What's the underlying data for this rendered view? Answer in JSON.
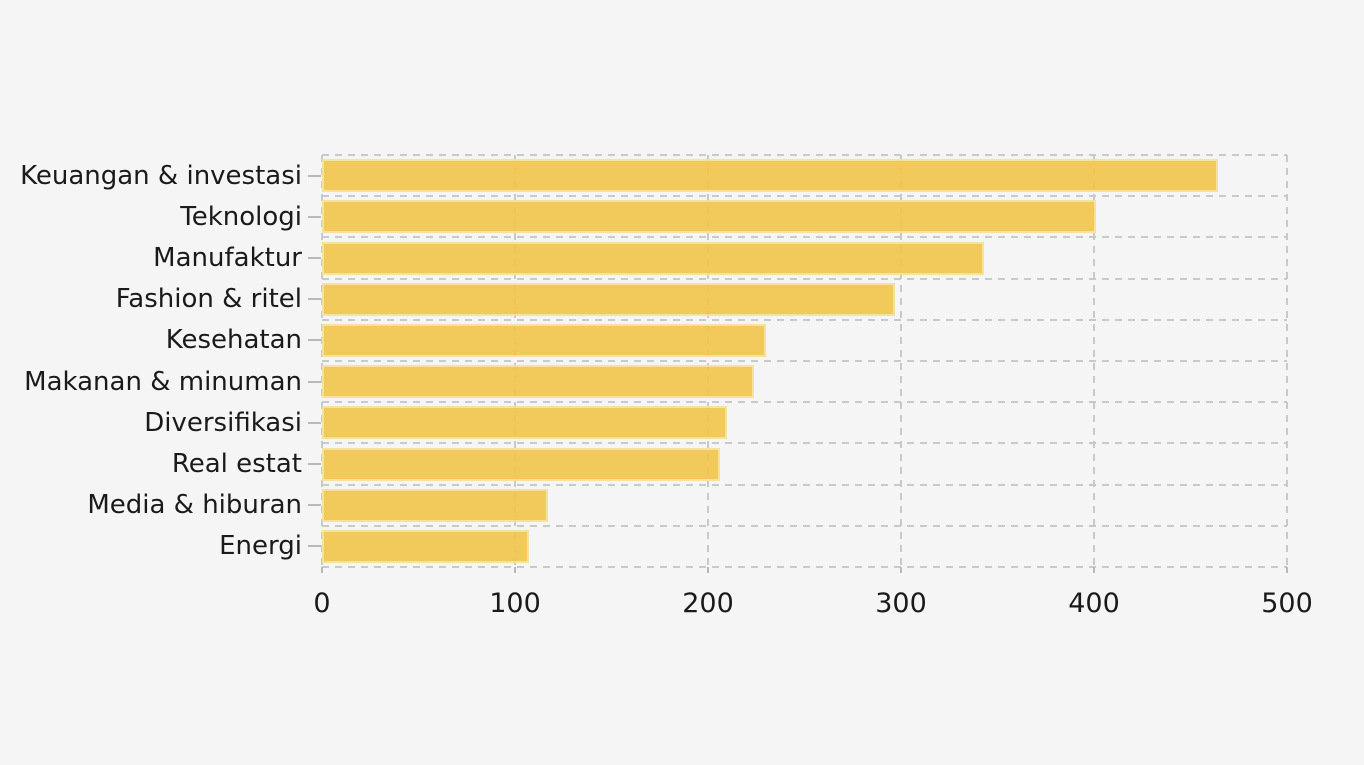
{
  "chart_data": {
    "type": "bar",
    "orientation": "horizontal",
    "title": "",
    "xlabel": "",
    "ylabel": "",
    "categories": [
      "Keuangan & investasi",
      "Teknologi",
      "Manufaktur",
      "Fashion & ritel",
      "Kesehatan",
      "Makanan & minuman",
      "Diversifikasi",
      "Real estat",
      "Media & hiburan",
      "Energi"
    ],
    "values": [
      464,
      401,
      343,
      297,
      230,
      224,
      210,
      206,
      117,
      107
    ],
    "xlim": [
      0,
      500
    ],
    "x_ticks": [
      "0",
      "100",
      "200",
      "300",
      "400",
      "500"
    ],
    "x_tick_values": [
      0,
      100,
      200,
      300,
      400,
      500
    ],
    "grid": "dashed",
    "legend": "none",
    "colors": {
      "bar": "#f0c64f",
      "background": "#f5f5f5",
      "gridline": "#c9c9c9",
      "tickmark": "#b9b9b9",
      "text": "#1a1a1a"
    }
  }
}
